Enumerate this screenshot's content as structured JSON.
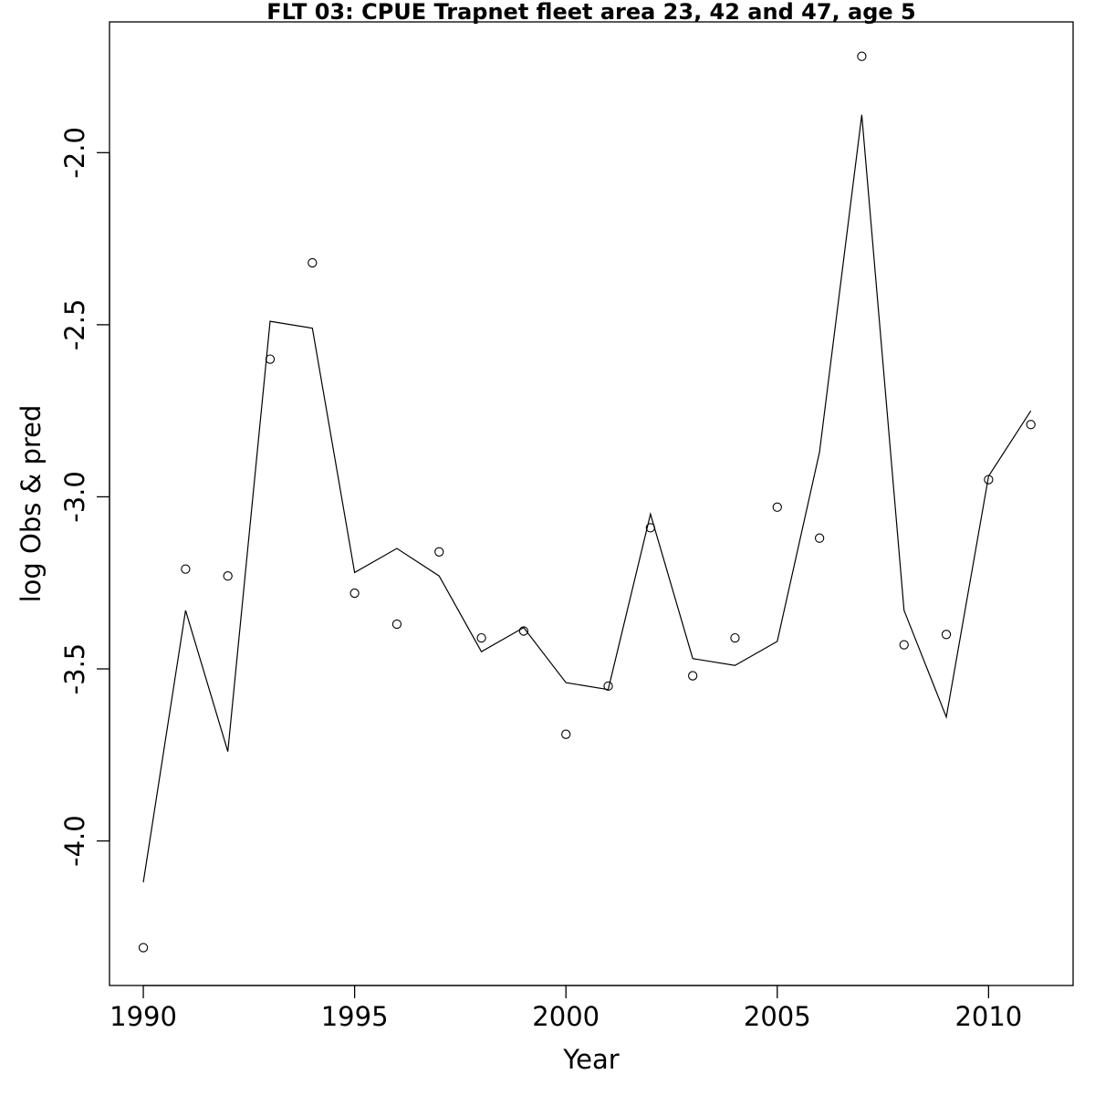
{
  "chart_data": {
    "type": "scatter",
    "title": "FLT 03: CPUE Trapnet fleet area 23, 42 and 47, age 5",
    "xlabel": "Year",
    "ylabel": "log Obs & pred",
    "xlim": [
      1989.2,
      2012.0
    ],
    "ylim": [
      -4.42,
      -1.62
    ],
    "x_ticks": [
      1990,
      1995,
      2000,
      2005,
      2010
    ],
    "x_tick_labels": [
      "1990",
      "1995",
      "2000",
      "2005",
      "2010"
    ],
    "y_ticks": [
      -4.0,
      -3.5,
      -3.0,
      -2.5,
      -2.0
    ],
    "y_tick_labels": [
      "-4.0",
      "-3.5",
      "-3.0",
      "-2.5",
      "-2.0"
    ],
    "grid": false,
    "legend": "none",
    "line_color": "#000000",
    "point_color": "#000000",
    "series": [
      {
        "role": "observed",
        "style": "open-circle",
        "x": [
          1990,
          1991,
          1992,
          1993,
          1994,
          1995,
          1996,
          1997,
          1998,
          1999,
          2000,
          2001,
          2002,
          2003,
          2004,
          2005,
          2006,
          2007,
          2008,
          2009,
          2010,
          2011
        ],
        "y": [
          -4.31,
          -3.21,
          -3.23,
          -2.6,
          -2.32,
          -3.28,
          -3.37,
          -3.16,
          -3.41,
          -3.39,
          -3.69,
          -3.55,
          -3.09,
          -3.52,
          -3.41,
          -3.03,
          -3.12,
          -1.72,
          -3.43,
          -3.4,
          -2.95,
          -2.79
        ]
      },
      {
        "role": "predicted",
        "style": "line",
        "x": [
          1990,
          1991,
          1992,
          1993,
          1994,
          1995,
          1996,
          1997,
          1998,
          1999,
          2000,
          2001,
          2002,
          2003,
          2004,
          2005,
          2006,
          2007,
          2008,
          2009,
          2010,
          2011
        ],
        "y": [
          -4.12,
          -3.33,
          -3.74,
          -2.49,
          -2.51,
          -3.22,
          -3.15,
          -3.23,
          -3.45,
          -3.38,
          -3.54,
          -3.56,
          -3.05,
          -3.47,
          -3.49,
          -3.42,
          -2.87,
          -1.89,
          -3.33,
          -3.64,
          -2.94,
          -2.75
        ]
      }
    ]
  }
}
